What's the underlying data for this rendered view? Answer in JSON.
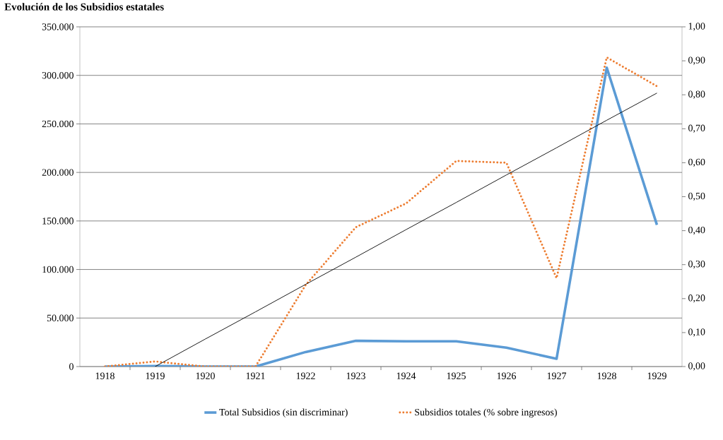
{
  "chart_data": {
    "type": "line",
    "title": "Evolución de los Subsidios estatales",
    "categories": [
      "1918",
      "1919",
      "1920",
      "1921",
      "1922",
      "1923",
      "1924",
      "1925",
      "1926",
      "1927",
      "1928",
      "1929"
    ],
    "series": [
      {
        "name": "Total Subsidios (sin discriminar)",
        "color": "#5b9bd5",
        "line_style": "solid",
        "values": [
          0,
          500,
          0,
          0,
          15000,
          26500,
          26000,
          26000,
          19500,
          8000,
          308000,
          146000
        ]
      },
      {
        "name": "Subsidios totales (% sobre ingresos)",
        "color": "#ed7d31",
        "line_style": "dotted",
        "axis": "y2",
        "values": [
          0,
          0.015,
          0,
          0,
          0.24,
          0.41,
          0.48,
          0.605,
          0.6,
          0.26,
          0.91,
          0.825
        ]
      },
      {
        "color": "#000000",
        "line_style": "solid",
        "axis": "y2",
        "values": [
          null,
          0,
          0.081,
          0.161,
          0.242,
          0.322,
          0.403,
          0.483,
          0.564,
          0.644,
          0.725,
          0.805
        ]
      }
    ],
    "ylim": [
      0,
      350000
    ],
    "yticks": [
      {
        "value": 0,
        "label": "0"
      },
      {
        "value": 50000,
        "label": "50.000"
      },
      {
        "value": 100000,
        "label": "100.000"
      },
      {
        "value": 150000,
        "label": "150.000"
      },
      {
        "value": 200000,
        "label": "200.000"
      },
      {
        "value": 250000,
        "label": "250.000"
      },
      {
        "value": 300000,
        "label": "300.000"
      },
      {
        "value": 350000,
        "label": "350.000"
      }
    ],
    "y2lim": [
      0,
      1
    ],
    "y2ticks": [
      {
        "value": 0,
        "label": "0,00"
      },
      {
        "value": 0.1,
        "label": "0,10"
      },
      {
        "value": 0.2,
        "label": "0,20"
      },
      {
        "value": 0.3,
        "label": "0,30"
      },
      {
        "value": 0.4,
        "label": "0,40"
      },
      {
        "value": 0.5,
        "label": "0,50"
      },
      {
        "value": 0.6,
        "label": "0,60"
      },
      {
        "value": 0.7,
        "label": "0,70"
      },
      {
        "value": 0.8,
        "label": "0,80"
      },
      {
        "value": 0.9,
        "label": "0,90"
      },
      {
        "value": 1,
        "label": "1,00"
      }
    ],
    "grid": "y",
    "legend": "bottom",
    "marker": "none"
  }
}
